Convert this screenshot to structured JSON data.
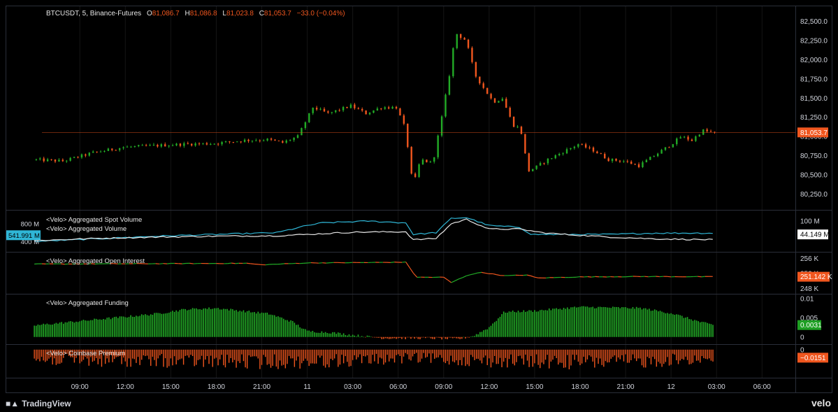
{
  "header": {
    "symbol": "BTCUSDT, 5, Binance-Futures",
    "o_label": "O",
    "o_value": "81,086.7",
    "h_label": "H",
    "h_value": "81,086.8",
    "l_label": "L",
    "l_value": "81,023.8",
    "c_label": "C",
    "c_value": "81,053.7",
    "change": "−33.0 (−0.04%)"
  },
  "colors": {
    "background": "#000000",
    "up": "#22ab26",
    "down": "#f0561e",
    "spot_volume": "#2fb6d6",
    "volume": "#e8e8e8",
    "grid": "#151515",
    "axis_text": "#d1d4dc",
    "price_tag": "#f0561e",
    "funding_tag": "#1e9f23"
  },
  "chart_data": [
    {
      "type": "candlestick",
      "name_label": "price",
      "ylim": [
        80100,
        82650
      ],
      "y_ticks": [
        "82,500.0",
        "82,250.0",
        "82,000.0",
        "81,750.0",
        "81,500.0",
        "81,250.0",
        "81,000.0",
        "80,750.0",
        "80,500.0",
        "80,250.0"
      ],
      "y_tick_values": [
        82500,
        82250,
        82000,
        81750,
        81500,
        81250,
        81000,
        80750,
        80500,
        80250
      ],
      "last_price_label": "81,053.7",
      "last_price": 81053.7,
      "keyframes": [
        {
          "h": 0,
          "p": 80700
        },
        {
          "h": 2,
          "p": 80680
        },
        {
          "h": 4,
          "p": 80790
        },
        {
          "h": 6,
          "p": 80860
        },
        {
          "h": 8,
          "p": 80880
        },
        {
          "h": 10,
          "p": 80900
        },
        {
          "h": 12,
          "p": 80910
        },
        {
          "h": 14,
          "p": 80950
        },
        {
          "h": 15.5,
          "p": 80960
        },
        {
          "h": 16.5,
          "p": 80920
        },
        {
          "h": 17.5,
          "p": 81000
        },
        {
          "h": 18.5,
          "p": 81380
        },
        {
          "h": 19.5,
          "p": 81300
        },
        {
          "h": 21,
          "p": 81400
        },
        {
          "h": 22,
          "p": 81300
        },
        {
          "h": 23,
          "p": 81380
        },
        {
          "h": 24,
          "p": 81380
        },
        {
          "h": 24.6,
          "p": 81100
        },
        {
          "h": 25.1,
          "p": 80350
        },
        {
          "h": 25.6,
          "p": 80700
        },
        {
          "h": 26.4,
          "p": 80650
        },
        {
          "h": 27,
          "p": 81250
        },
        {
          "h": 27.5,
          "p": 81800
        },
        {
          "h": 27.9,
          "p": 82350
        },
        {
          "h": 28.6,
          "p": 82250
        },
        {
          "h": 29.2,
          "p": 81800
        },
        {
          "h": 29.7,
          "p": 81650
        },
        {
          "h": 30.4,
          "p": 81450
        },
        {
          "h": 31,
          "p": 81500
        },
        {
          "h": 31.7,
          "p": 81150
        },
        {
          "h": 32.2,
          "p": 81100
        },
        {
          "h": 32.7,
          "p": 80550
        },
        {
          "h": 33.2,
          "p": 80600
        },
        {
          "h": 34,
          "p": 80700
        },
        {
          "h": 35,
          "p": 80800
        },
        {
          "h": 36,
          "p": 80900
        },
        {
          "h": 37,
          "p": 80820
        },
        {
          "h": 38,
          "p": 80700
        },
        {
          "h": 39,
          "p": 80680
        },
        {
          "h": 40,
          "p": 80620
        },
        {
          "h": 41,
          "p": 80750
        },
        {
          "h": 42,
          "p": 80880
        },
        {
          "h": 42.8,
          "p": 81000
        },
        {
          "h": 43.5,
          "p": 80950
        },
        {
          "h": 44.2,
          "p": 81080
        },
        {
          "h": 44.8,
          "p": 81053.7
        }
      ]
    },
    {
      "type": "line",
      "ylim": [
        200,
        1050
      ],
      "series": [
        {
          "name": "<Velo> Aggregated Spot Volume",
          "color": "#2fb6d6",
          "keyframes": [
            {
              "h": 0,
              "v": 400
            },
            {
              "h": 4,
              "v": 460
            },
            {
              "h": 8,
              "v": 520
            },
            {
              "h": 12,
              "v": 560
            },
            {
              "h": 16,
              "v": 600
            },
            {
              "h": 18,
              "v": 760
            },
            {
              "h": 19,
              "v": 820
            },
            {
              "h": 22,
              "v": 860
            },
            {
              "h": 24.5,
              "v": 820
            },
            {
              "h": 25,
              "v": 560
            },
            {
              "h": 26.5,
              "v": 600
            },
            {
              "h": 27.5,
              "v": 920
            },
            {
              "h": 28.5,
              "v": 940
            },
            {
              "h": 30,
              "v": 760
            },
            {
              "h": 32,
              "v": 720
            },
            {
              "h": 32.8,
              "v": 560
            },
            {
              "h": 35,
              "v": 560
            },
            {
              "h": 38,
              "v": 560
            },
            {
              "h": 41,
              "v": 590
            },
            {
              "h": 44.8,
              "v": 590
            }
          ]
        },
        {
          "name": "<Velo> Aggregated Volume",
          "color": "#e8e8e8",
          "keyframes": [
            {
              "h": 0,
              "v": 420
            },
            {
              "h": 4,
              "v": 470
            },
            {
              "h": 8,
              "v": 500
            },
            {
              "h": 12,
              "v": 520
            },
            {
              "h": 16,
              "v": 530
            },
            {
              "h": 18,
              "v": 560
            },
            {
              "h": 21,
              "v": 610
            },
            {
              "h": 24.5,
              "v": 620
            },
            {
              "h": 25,
              "v": 440
            },
            {
              "h": 26.5,
              "v": 470
            },
            {
              "h": 27.5,
              "v": 800
            },
            {
              "h": 28.5,
              "v": 900
            },
            {
              "h": 30,
              "v": 680
            },
            {
              "h": 32,
              "v": 680
            },
            {
              "h": 33.5,
              "v": 600
            },
            {
              "h": 35,
              "v": 560
            },
            {
              "h": 38,
              "v": 500
            },
            {
              "h": 41,
              "v": 460
            },
            {
              "h": 44.8,
              "v": 440
            }
          ]
        }
      ],
      "y_left_ticks": [
        "800 M",
        "400 M"
      ],
      "y_left_tick_values": [
        800,
        400
      ],
      "left_tag": "541.991 M",
      "left_tag_value": 541.991,
      "y_right_ticks": [
        "100 M"
      ],
      "y_right_tick_values": [
        860
      ],
      "right_tag": "44.149 M",
      "right_tag_value": 560
    },
    {
      "type": "line",
      "name": "<Velo> Aggregated Open Interest",
      "ylim": [
        247,
        257
      ],
      "y_ticks": [
        "256 K",
        "252 K",
        "248 K"
      ],
      "y_tick_values": [
        256,
        252,
        248
      ],
      "last_label": "251.142 K",
      "last_value": 251.142,
      "keyframes": [
        {
          "h": 0,
          "v": 254.5
        },
        {
          "h": 8,
          "v": 254.6
        },
        {
          "h": 14,
          "v": 254.7
        },
        {
          "h": 15,
          "v": 254.3
        },
        {
          "h": 18,
          "v": 254.8
        },
        {
          "h": 22,
          "v": 254.9
        },
        {
          "h": 24.5,
          "v": 255.0
        },
        {
          "h": 25.2,
          "v": 251.0
        },
        {
          "h": 27,
          "v": 251.0
        },
        {
          "h": 27.5,
          "v": 249.6
        },
        {
          "h": 28.6,
          "v": 251.6
        },
        {
          "h": 29.5,
          "v": 252.3
        },
        {
          "h": 31,
          "v": 251.4
        },
        {
          "h": 32.5,
          "v": 251.6
        },
        {
          "h": 33.2,
          "v": 250.8
        },
        {
          "h": 36,
          "v": 251.1
        },
        {
          "h": 40,
          "v": 251.2
        },
        {
          "h": 44.8,
          "v": 251.142
        }
      ]
    },
    {
      "type": "bar",
      "name": "<Velo> Aggregated Funding",
      "ylim": [
        -0.0015,
        0.0105
      ],
      "y_ticks": [
        "0.01",
        "0.005",
        "0"
      ],
      "y_tick_values": [
        0.01,
        0.005,
        0
      ],
      "last_label": "0.0031",
      "last_value": 0.0031,
      "keyframes": [
        {
          "h": 0,
          "v": 0.003
        },
        {
          "h": 4,
          "v": 0.0045
        },
        {
          "h": 8,
          "v": 0.006
        },
        {
          "h": 10,
          "v": 0.0072
        },
        {
          "h": 12,
          "v": 0.0075
        },
        {
          "h": 15.5,
          "v": 0.006
        },
        {
          "h": 17,
          "v": 0.004
        },
        {
          "h": 18,
          "v": 0.0015
        },
        {
          "h": 19.5,
          "v": 0.0012
        },
        {
          "h": 21,
          "v": 0.0005
        },
        {
          "h": 23,
          "v": -0.0003
        },
        {
          "h": 26,
          "v": -0.0003
        },
        {
          "h": 28,
          "v": -0.0005
        },
        {
          "h": 29,
          "v": 0.0003
        },
        {
          "h": 30,
          "v": 0.0025
        },
        {
          "h": 31,
          "v": 0.0065
        },
        {
          "h": 33,
          "v": 0.0068
        },
        {
          "h": 36,
          "v": 0.0078
        },
        {
          "h": 40,
          "v": 0.0075
        },
        {
          "h": 42,
          "v": 0.0062
        },
        {
          "h": 44,
          "v": 0.0038
        },
        {
          "h": 44.8,
          "v": 0.0031
        }
      ]
    },
    {
      "type": "bar",
      "name": "<Velo> Coinbase Premium",
      "ylim": [
        -0.05,
        0.005
      ],
      "y_ticks": [
        "0"
      ],
      "y_tick_values": [
        0
      ],
      "last_label": "−0.0151",
      "last_value": -0.0151,
      "keyframes": [
        {
          "h": 0,
          "v": -0.018
        },
        {
          "h": 8,
          "v": -0.02
        },
        {
          "h": 15,
          "v": -0.022
        },
        {
          "h": 20,
          "v": -0.02
        },
        {
          "h": 25,
          "v": -0.015
        },
        {
          "h": 30,
          "v": -0.02
        },
        {
          "h": 35,
          "v": -0.022
        },
        {
          "h": 40,
          "v": -0.021
        },
        {
          "h": 44.8,
          "v": -0.0151
        }
      ]
    }
  ],
  "x_axis": {
    "tick_labels": [
      "09:00",
      "12:00",
      "15:00",
      "18:00",
      "21:00",
      "11",
      "03:00",
      "06:00",
      "09:00",
      "12:00",
      "15:00",
      "18:00",
      "21:00",
      "12",
      "03:00",
      "06:00"
    ],
    "tick_hours": [
      3,
      6,
      9,
      12,
      15,
      18,
      21,
      24,
      27,
      30,
      33,
      36,
      39,
      42,
      45,
      48
    ],
    "x_range_hours": [
      0.5,
      50.2
    ]
  },
  "footer": {
    "tv_brand": "TradingView",
    "velo_brand": "velo"
  }
}
